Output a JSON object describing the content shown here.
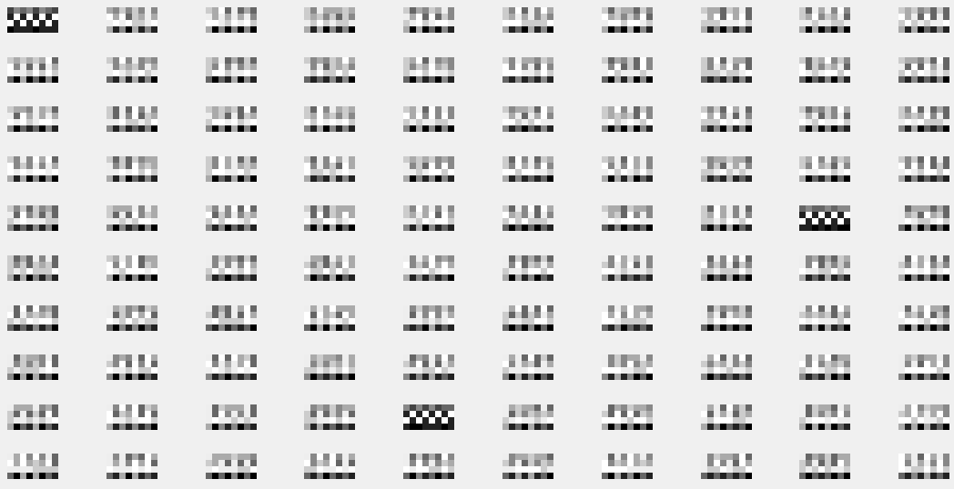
{
  "figure": {
    "rows": 10,
    "cols": 10,
    "tile_grid": {
      "cols": 8,
      "rows": 4
    },
    "background_color": "#f0f0f0",
    "palette": [
      "#000000",
      "#222222",
      "#444444",
      "#666666",
      "#888888",
      "#aaaaaa",
      "#cccccc",
      "#eeeeee",
      "#ffffff"
    ],
    "dark_tiles": [
      {
        "row": 0,
        "col": 0
      },
      {
        "row": 4,
        "col": 8
      },
      {
        "row": 8,
        "col": 4
      }
    ]
  }
}
